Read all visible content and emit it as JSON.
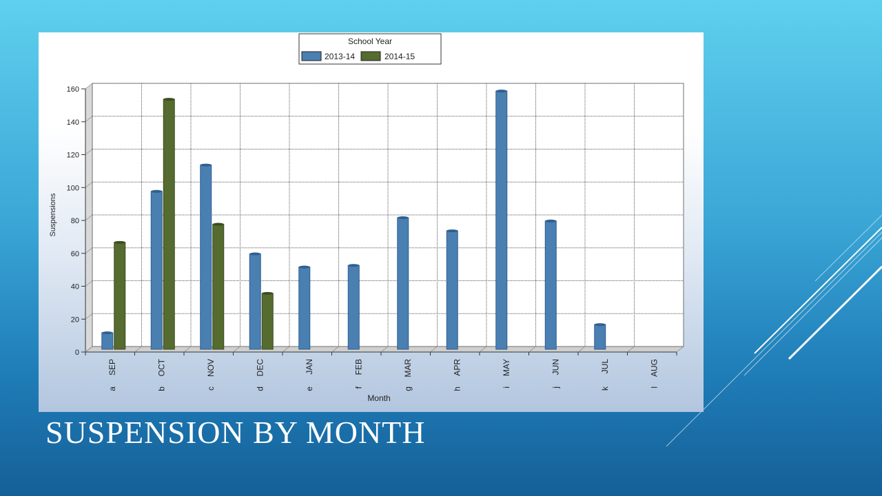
{
  "slide": {
    "title": "SUSPENSION BY MONTH"
  },
  "colors": {
    "series_2013": "#4a7fb2",
    "series_2014": "#556b2f"
  },
  "chart_data": {
    "type": "bar",
    "legend_title": "School Year",
    "legend_position": "top-center",
    "xlabel": "Month",
    "ylabel": "Suspensions",
    "ylim": [
      0,
      160
    ],
    "yticks": [
      0,
      20,
      40,
      60,
      80,
      100,
      120,
      140,
      160
    ],
    "grid": true,
    "categories": [
      "SEP",
      "OCT",
      "NOV",
      "DEC",
      "JAN",
      "FEB",
      "MAR",
      "APR",
      "MAY",
      "JUN",
      "JUL",
      "AUG"
    ],
    "category_codes": [
      "a",
      "b",
      "c",
      "d",
      "e",
      "f",
      "g",
      "h",
      "i",
      "j",
      "k",
      "l"
    ],
    "series": [
      {
        "name": "2013-14",
        "values": [
          10,
          96,
          112,
          58,
          50,
          51,
          80,
          72,
          157,
          78,
          15,
          0
        ]
      },
      {
        "name": "2014-15",
        "values": [
          65,
          152,
          76,
          34,
          null,
          null,
          null,
          null,
          null,
          null,
          null,
          null
        ]
      }
    ]
  }
}
